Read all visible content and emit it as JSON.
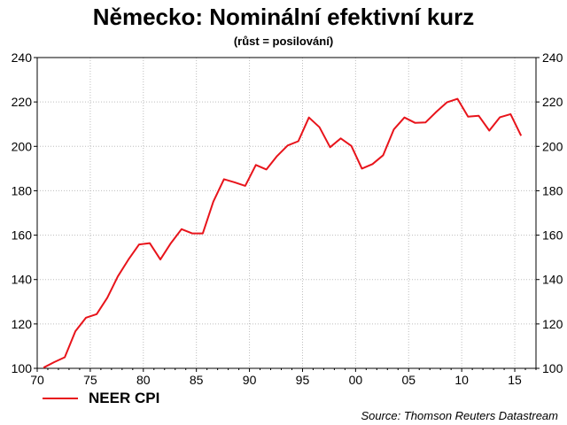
{
  "chart_data": {
    "type": "line",
    "title": "Německo: Nominální efektivní kurz",
    "subtitle": "(růst = posilování)",
    "source": "Source: Thomson Reuters Datastream",
    "xlim": [
      1970,
      2017
    ],
    "ylim": [
      100,
      240
    ],
    "y_ticks": [
      "100",
      "120",
      "140",
      "160",
      "180",
      "200",
      "220",
      "240"
    ],
    "x_ticks": [
      {
        "label": "70",
        "year": 1970
      },
      {
        "label": "75",
        "year": 1975
      },
      {
        "label": "80",
        "year": 1980
      },
      {
        "label": "85",
        "year": 1985
      },
      {
        "label": "90",
        "year": 1990
      },
      {
        "label": "95",
        "year": 1995
      },
      {
        "label": "00",
        "year": 2000
      },
      {
        "label": "05",
        "year": 2005
      },
      {
        "label": "10",
        "year": 2010
      },
      {
        "label": "15",
        "year": 2015
      }
    ],
    "grid": true,
    "right_axis": true,
    "legend_position": "bottom-left",
    "series": [
      {
        "name": "NEER CPI",
        "color": "#e8141b",
        "x": [
          1970.6,
          1971.6,
          1972.6,
          1973.6,
          1974.6,
          1975.6,
          1976.6,
          1977.6,
          1978.6,
          1979.6,
          1980.6,
          1981.6,
          1982.6,
          1983.6,
          1984.6,
          1985.6,
          1986.6,
          1987.6,
          1988.6,
          1989.6,
          1990.6,
          1991.6,
          1992.6,
          1993.6,
          1994.6,
          1995.6,
          1996.6,
          1997.6,
          1998.6,
          1999.6,
          2000.6,
          2001.6,
          2002.6,
          2003.6,
          2004.6,
          2005.6,
          2006.6,
          2007.6,
          2008.6,
          2009.6,
          2010.6,
          2011.6,
          2012.6,
          2013.6,
          2014.6,
          2015.6
        ],
        "y": [
          100.3,
          102.8,
          105.0,
          116.7,
          122.8,
          124.4,
          131.8,
          141.4,
          149.0,
          155.8,
          156.4,
          149.0,
          156.4,
          162.7,
          160.8,
          160.8,
          175.1,
          185.2,
          183.8,
          182.2,
          191.6,
          189.6,
          195.6,
          200.4,
          202.3,
          213.0,
          208.6,
          199.6,
          203.6,
          200.2,
          190.0,
          192.0,
          196.0,
          207.6,
          213.0,
          210.6,
          210.8,
          215.5,
          219.8,
          221.4,
          213.4,
          213.8,
          207.1,
          213.1,
          214.5,
          204.8
        ]
      }
    ]
  }
}
